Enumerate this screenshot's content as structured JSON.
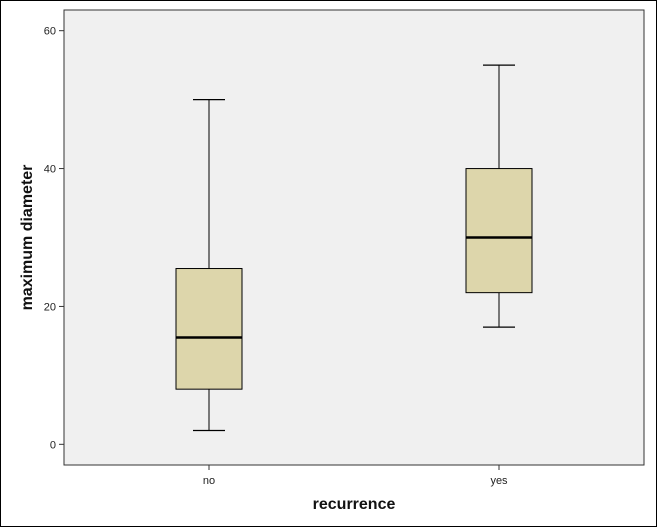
{
  "chart_data": {
    "type": "boxplot",
    "title": "",
    "xlabel": "recurrence",
    "ylabel": "maximum diameter",
    "ylim": [
      -3,
      63
    ],
    "yticks": [
      0,
      20,
      40,
      60
    ],
    "grid": false,
    "categories": [
      "no",
      "yes"
    ],
    "boxes": [
      {
        "category": "no",
        "whisker_low": 2,
        "q1": 8,
        "median": 15.5,
        "q3": 25.5,
        "whisker_high": 50
      },
      {
        "category": "yes",
        "whisker_low": 17,
        "q1": 22,
        "median": 30,
        "q3": 40,
        "whisker_high": 55
      }
    ],
    "colors": {
      "box_fill": "#ddd6ab",
      "plot_background": "#f0f0f0",
      "line": "#000000"
    }
  }
}
